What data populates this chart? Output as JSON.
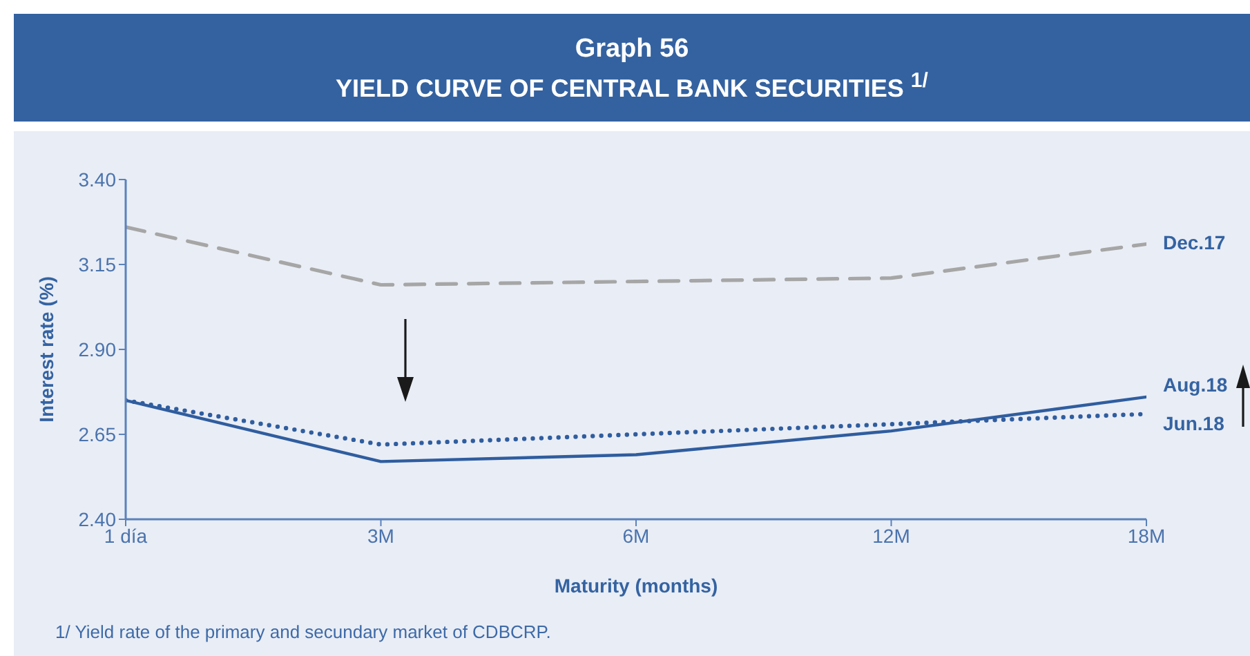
{
  "chart_data": {
    "type": "line",
    "title": "Graph 56",
    "subtitle": "YIELD CURVE OF CENTRAL BANK SECURITIES $^{1/}$",
    "xlabel": "Maturity (months)",
    "ylabel": "Interest rate (%)",
    "categories": [
      "1 día",
      "3M",
      "6M",
      "12M",
      "18M"
    ],
    "series": [
      {
        "name": "Dec.17",
        "color": "#a6a6a6",
        "line_style": "dashed",
        "values": [
          3.26,
          3.09,
          3.1,
          3.11,
          3.21
        ]
      },
      {
        "name": "Aug.18",
        "color": "#2f5d9f",
        "line_style": "solid",
        "values": [
          2.75,
          2.57,
          2.59,
          2.66,
          2.76
        ]
      },
      {
        "name": "Jun.18",
        "color": "#2f5d9f",
        "line_style": "dotted",
        "values": [
          2.75,
          2.62,
          2.65,
          2.68,
          2.71
        ]
      }
    ],
    "ylim": [
      2.4,
      3.4
    ],
    "yticks": [
      {
        "value": 2.4,
        "label": "2.40"
      },
      {
        "value": 2.65,
        "label": "2.65"
      },
      {
        "value": 2.9,
        "label": "2.90"
      },
      {
        "value": 3.15,
        "label": "3.15"
      },
      {
        "value": 3.4,
        "label": "3.40"
      }
    ],
    "annotations": [
      "1/ Yield rate of the primary and secundary market of CDBCRP."
    ]
  }
}
